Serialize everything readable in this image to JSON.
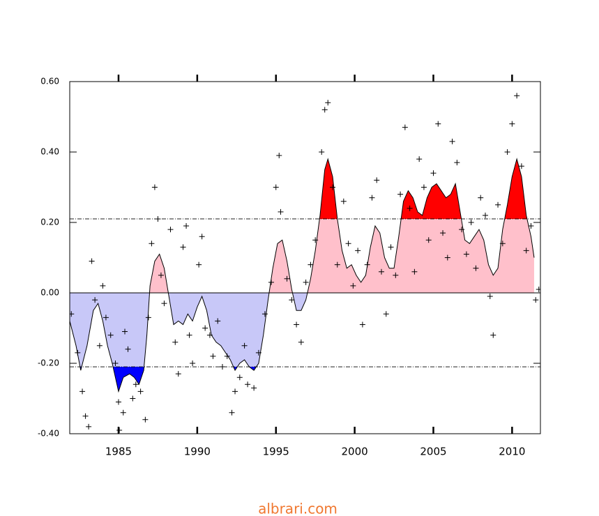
{
  "chart_data": {
    "type": "line",
    "xlim": [
      1981.9,
      2011.8
    ],
    "ylim": [
      -0.4,
      0.6
    ],
    "xticks": [
      1985,
      1990,
      1995,
      2000,
      2005,
      2010
    ],
    "yticks": [
      {
        "value": 0.6,
        "label": "0.60"
      },
      {
        "value": 0.4,
        "label": "0.40"
      },
      {
        "value": 0.2,
        "label": "0.20"
      },
      {
        "value": 0,
        "label": "0.00"
      },
      {
        "value": -0.2,
        "label": "-0.20"
      },
      {
        "value": -0.4,
        "label": "-0.40"
      }
    ],
    "thresholds": [
      0.21,
      -0.21
    ],
    "colors": {
      "line": "#000000",
      "above": "#ffc0cb",
      "below": "#c8c8f8",
      "above_threshold": "#ff0000",
      "below_threshold": "#0000ff",
      "points": "#000000"
    },
    "x": [
      1981.9,
      1982.3,
      1982.6,
      1983.0,
      1983.4,
      1983.7,
      1984.0,
      1984.3,
      1984.6,
      1985.0,
      1985.3,
      1985.7,
      1986.0,
      1986.3,
      1986.6,
      1986.8,
      1987.0,
      1987.3,
      1987.6,
      1987.9,
      1988.2,
      1988.5,
      1988.8,
      1989.1,
      1989.4,
      1989.7,
      1990.0,
      1990.3,
      1990.6,
      1990.9,
      1991.2,
      1991.5,
      1991.8,
      1992.1,
      1992.4,
      1992.7,
      1993.0,
      1993.3,
      1993.6,
      1993.9,
      1994.2,
      1994.5,
      1994.8,
      1995.1,
      1995.4,
      1995.7,
      1996.0,
      1996.3,
      1996.6,
      1996.9,
      1997.2,
      1997.5,
      1997.8,
      1998.1,
      1998.3,
      1998.6,
      1998.9,
      1999.2,
      1999.5,
      1999.8,
      2000.1,
      2000.4,
      2000.7,
      2001.0,
      2001.3,
      2001.6,
      2001.9,
      2002.2,
      2002.5,
      2002.8,
      2003.1,
      2003.4,
      2003.7,
      2004.0,
      2004.3,
      2004.6,
      2004.9,
      2005.2,
      2005.5,
      2005.8,
      2006.1,
      2006.4,
      2006.7,
      2007.0,
      2007.3,
      2007.6,
      2007.9,
      2008.2,
      2008.5,
      2008.8,
      2009.1,
      2009.4,
      2009.7,
      2010.0,
      2010.3,
      2010.6,
      2010.9,
      2011.2,
      2011.4
    ],
    "values": [
      -0.08,
      -0.15,
      -0.22,
      -0.15,
      -0.05,
      -0.03,
      -0.08,
      -0.15,
      -0.2,
      -0.28,
      -0.24,
      -0.23,
      -0.24,
      -0.26,
      -0.22,
      -0.12,
      0.02,
      0.09,
      0.11,
      0.07,
      -0.01,
      -0.09,
      -0.08,
      -0.09,
      -0.06,
      -0.08,
      -0.04,
      -0.01,
      -0.05,
      -0.12,
      -0.14,
      -0.15,
      -0.17,
      -0.19,
      -0.22,
      -0.2,
      -0.19,
      -0.21,
      -0.22,
      -0.2,
      -0.12,
      -0.02,
      0.07,
      0.14,
      0.15,
      0.09,
      0.01,
      -0.05,
      -0.05,
      -0.02,
      0.04,
      0.12,
      0.22,
      0.35,
      0.38,
      0.33,
      0.21,
      0.12,
      0.07,
      0.08,
      0.05,
      0.03,
      0.05,
      0.13,
      0.19,
      0.17,
      0.1,
      0.07,
      0.07,
      0.16,
      0.26,
      0.29,
      0.27,
      0.23,
      0.22,
      0.27,
      0.3,
      0.31,
      0.29,
      0.27,
      0.28,
      0.31,
      0.23,
      0.15,
      0.14,
      0.16,
      0.18,
      0.15,
      0.08,
      0.05,
      0.07,
      0.18,
      0.25,
      0.33,
      0.38,
      0.33,
      0.22,
      0.16,
      0.1
    ],
    "points": {
      "x": [
        1982.0,
        1982.4,
        1982.7,
        1982.9,
        1983.1,
        1983.3,
        1983.5,
        1983.8,
        1984.0,
        1984.2,
        1984.5,
        1984.8,
        1985.0,
        1985.05,
        1985.3,
        1985.4,
        1985.6,
        1985.9,
        1986.1,
        1986.4,
        1986.7,
        1986.9,
        1987.1,
        1987.3,
        1987.5,
        1987.7,
        1987.9,
        1988.3,
        1988.6,
        1988.8,
        1989.1,
        1989.3,
        1989.5,
        1989.7,
        1990.1,
        1990.3,
        1990.5,
        1990.8,
        1991.0,
        1991.3,
        1991.6,
        1991.9,
        1992.2,
        1992.4,
        1992.7,
        1993.0,
        1993.2,
        1993.6,
        1993.9,
        1994.3,
        1994.7,
        1995.0,
        1995.2,
        1995.3,
        1995.7,
        1996.0,
        1996.3,
        1996.6,
        1996.9,
        1997.2,
        1997.5,
        1997.9,
        1998.1,
        1998.3,
        1998.6,
        1998.9,
        1999.3,
        1999.6,
        1999.9,
        2000.2,
        2000.5,
        2000.8,
        2001.1,
        2001.4,
        2001.7,
        2002.0,
        2002.3,
        2002.6,
        2002.9,
        2003.2,
        2003.5,
        2003.8,
        2004.1,
        2004.4,
        2004.7,
        2005.0,
        2005.3,
        2005.6,
        2005.9,
        2006.2,
        2006.5,
        2006.8,
        2007.1,
        2007.4,
        2007.7,
        2008.0,
        2008.3,
        2008.6,
        2008.8,
        2009.1,
        2009.4,
        2009.7,
        2010.0,
        2010.3,
        2010.6,
        2010.9,
        2011.2,
        2011.5,
        2011.7
      ],
      "values": [
        -0.06,
        -0.17,
        -0.28,
        -0.35,
        -0.38,
        0.09,
        -0.02,
        -0.15,
        0.02,
        -0.07,
        -0.12,
        -0.2,
        -0.31,
        -0.39,
        -0.34,
        -0.11,
        -0.16,
        -0.3,
        -0.26,
        -0.28,
        -0.36,
        -0.07,
        0.14,
        0.3,
        0.21,
        0.05,
        -0.03,
        0.18,
        -0.14,
        -0.23,
        0.13,
        0.19,
        -0.12,
        -0.2,
        0.08,
        0.16,
        -0.1,
        -0.12,
        -0.18,
        -0.08,
        -0.21,
        -0.18,
        -0.34,
        -0.28,
        -0.24,
        -0.15,
        -0.26,
        -0.27,
        -0.17,
        -0.06,
        0.03,
        0.3,
        0.39,
        0.23,
        0.04,
        -0.02,
        -0.09,
        -0.14,
        0.03,
        0.08,
        0.15,
        0.4,
        0.52,
        0.54,
        0.3,
        0.08,
        0.26,
        0.14,
        0.02,
        0.12,
        -0.09,
        0.08,
        0.27,
        0.32,
        0.06,
        -0.06,
        0.13,
        0.05,
        0.28,
        0.47,
        0.24,
        0.06,
        0.38,
        0.3,
        0.15,
        0.34,
        0.48,
        0.17,
        0.1,
        0.43,
        0.37,
        0.18,
        0.11,
        0.2,
        0.07,
        0.27,
        0.22,
        -0.01,
        -0.12,
        0.25,
        0.14,
        0.4,
        0.48,
        0.56,
        0.36,
        0.12,
        0.19,
        -0.02,
        0.01
      ]
    },
    "watermark": "albrari.com"
  }
}
